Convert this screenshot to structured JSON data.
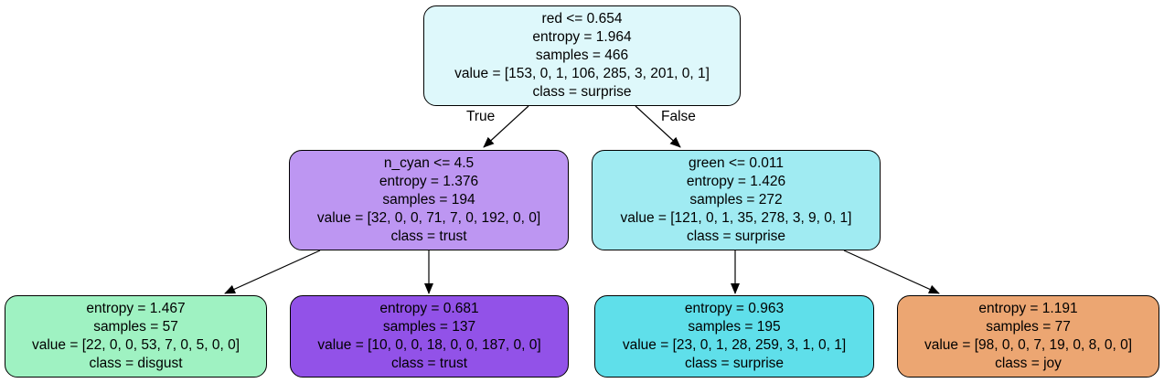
{
  "tree": {
    "root": {
      "split": "red <= 0.654",
      "entropy": "entropy = 1.964",
      "samples": "samples = 466",
      "value": "value = [153, 0, 1, 106, 285, 3, 201, 0, 1]",
      "class": "class = surprise",
      "fill": "#def8fb"
    },
    "edge_labels": {
      "true": "True",
      "false": "False"
    },
    "left": {
      "split": "n_cyan <= 4.5",
      "entropy": "entropy = 1.376",
      "samples": "samples = 194",
      "value": "value = [32, 0, 0, 71, 7, 0, 192, 0, 0]",
      "class": "class = trust",
      "fill": "#bd96f2"
    },
    "right": {
      "split": "green <= 0.011",
      "entropy": "entropy = 1.426",
      "samples": "samples = 272",
      "value": "value = [121, 0, 1, 35, 278, 3, 9, 0, 1]",
      "class": "class = surprise",
      "fill": "#a0ebf2"
    },
    "leaf_ll": {
      "entropy": "entropy = 1.467",
      "samples": "samples = 57",
      "value": "value = [22, 0, 0, 53, 7, 0, 5, 0, 0]",
      "class": "class = disgust",
      "fill": "#9ff2c2"
    },
    "leaf_lr": {
      "entropy": "entropy = 0.681",
      "samples": "samples = 137",
      "value": "value = [10, 0, 0, 18, 0, 0, 187, 0, 0]",
      "class": "class = trust",
      "fill": "#9252e8"
    },
    "leaf_rl": {
      "entropy": "entropy = 0.963",
      "samples": "samples = 195",
      "value": "value = [23, 0, 1, 28, 259, 3, 1, 0, 1]",
      "class": "class = surprise",
      "fill": "#5fdfea"
    },
    "leaf_rr": {
      "entropy": "entropy = 1.191",
      "samples": "samples = 77",
      "value": "value = [98, 0, 0, 7, 19, 0, 8, 0, 0]",
      "class": "class = joy",
      "fill": "#eca672"
    }
  }
}
